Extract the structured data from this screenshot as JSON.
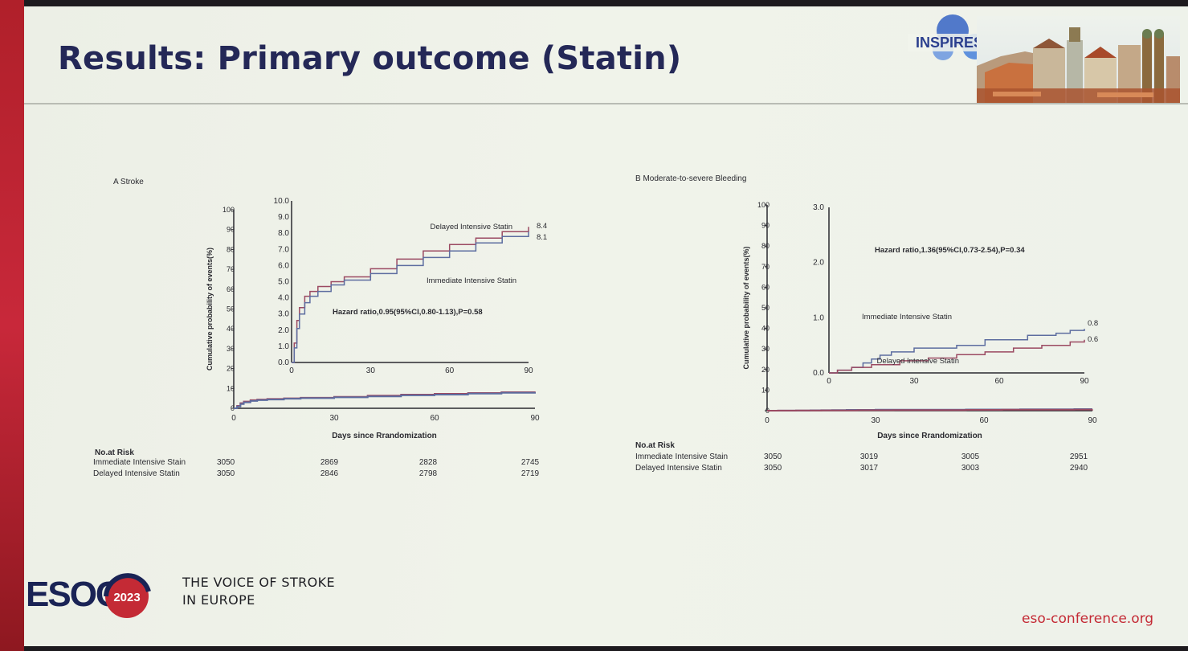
{
  "slide": {
    "title": "Results: Primary outcome (Statin)",
    "inspires_logo_text": "INSPIRES",
    "footer": {
      "esoc_logo_text": "ESOC",
      "year_badge": "2023",
      "tagline_line1": "THE VOICE OF STROKE",
      "tagline_line2": "IN EUROPE",
      "website": "eso-conference.org"
    }
  },
  "colors": {
    "immediate": "#5d6da0",
    "delayed": "#9b4a62",
    "title": "#242857",
    "accent_red": "#c42a35"
  },
  "chart_data": [
    {
      "type": "line",
      "panel_title": "A Stroke",
      "xlabel": "Days since Rrandomization",
      "ylabel": "Cumulative probability of events(%)",
      "xlim": [
        0,
        90
      ],
      "ylim": [
        0,
        100
      ],
      "x_ticks": [
        "0",
        "30",
        "60",
        "90"
      ],
      "y_ticks": [
        "0",
        "10",
        "20",
        "30",
        "40",
        "50",
        "60",
        "70",
        "80",
        "90",
        "100"
      ],
      "inset": {
        "ylim": [
          0,
          10
        ],
        "xlim": [
          0,
          90
        ],
        "x_ticks": [
          "0",
          "30",
          "60",
          "90"
        ],
        "y_ticks": [
          "0.0",
          "1.0",
          "2.0",
          "3.0",
          "4.0",
          "5.0",
          "6.0",
          "7.0",
          "8.0",
          "9.0",
          "10.0"
        ],
        "annotation": "Hazard ratio,0.95(95%CI,0.80-1.13),P=0.58"
      },
      "series": [
        {
          "name": "Delayed Intensive Statin",
          "end_label": "8.4",
          "x": [
            0,
            1,
            2,
            3,
            5,
            7,
            10,
            15,
            20,
            30,
            40,
            50,
            60,
            70,
            80,
            90
          ],
          "y": [
            0,
            1.2,
            2.6,
            3.4,
            4.1,
            4.4,
            4.7,
            5.0,
            5.3,
            5.8,
            6.4,
            6.9,
            7.3,
            7.7,
            8.1,
            8.4
          ]
        },
        {
          "name": "Immediate Intensive Statin",
          "end_label": "8.1",
          "x": [
            0,
            1,
            2,
            3,
            5,
            7,
            10,
            15,
            20,
            30,
            40,
            50,
            60,
            70,
            80,
            90
          ],
          "y": [
            0,
            0.9,
            2.1,
            3.0,
            3.7,
            4.1,
            4.4,
            4.8,
            5.1,
            5.5,
            6.0,
            6.5,
            6.9,
            7.4,
            7.8,
            8.1
          ]
        }
      ],
      "risk_table": {
        "header": "No.at Risk",
        "rows": [
          {
            "label": "Immediate Intensive Stain",
            "values": [
              "3050",
              "2869",
              "2828",
              "2745"
            ]
          },
          {
            "label": "Delayed Intensive Statin",
            "values": [
              "3050",
              "2846",
              "2798",
              "2719"
            ]
          }
        ]
      }
    },
    {
      "type": "line",
      "panel_title": "B Moderate-to-severe Bleeding",
      "xlabel": "Days since Rrandomization",
      "ylabel": "Cumulative probability of events(%)",
      "xlim": [
        0,
        90
      ],
      "ylim": [
        0,
        100
      ],
      "x_ticks": [
        "0",
        "30",
        "60",
        "90"
      ],
      "y_ticks": [
        "0",
        "10",
        "20",
        "30",
        "40",
        "50",
        "60",
        "70",
        "80",
        "90",
        "100"
      ],
      "inset": {
        "ylim": [
          0,
          3
        ],
        "xlim": [
          0,
          90
        ],
        "x_ticks": [
          "0",
          "30",
          "60",
          "90"
        ],
        "y_ticks": [
          "0.0",
          "1.0",
          "2.0",
          "3.0"
        ],
        "annotation": "Hazard ratio,1.36(95%CI,0.73-2.54),P=0.34"
      },
      "series": [
        {
          "name": "Immediate Intensive Statin",
          "end_label": "0.8",
          "x": [
            0,
            3,
            8,
            12,
            15,
            18,
            22,
            30,
            45,
            55,
            70,
            80,
            85,
            90
          ],
          "y": [
            0,
            0.05,
            0.1,
            0.18,
            0.25,
            0.32,
            0.38,
            0.45,
            0.5,
            0.6,
            0.68,
            0.72,
            0.77,
            0.8
          ]
        },
        {
          "name": "Delayed Intensive Statin",
          "end_label": "0.6",
          "x": [
            0,
            3,
            8,
            15,
            25,
            35,
            45,
            55,
            65,
            75,
            85,
            90
          ],
          "y": [
            0,
            0.05,
            0.1,
            0.15,
            0.22,
            0.27,
            0.33,
            0.38,
            0.45,
            0.5,
            0.56,
            0.6
          ]
        }
      ],
      "risk_table": {
        "header": "No.at Risk",
        "rows": [
          {
            "label": "Immediate Intensive Stain",
            "values": [
              "3050",
              "3019",
              "3005",
              "2951"
            ]
          },
          {
            "label": "Delayed Intensive Statin",
            "values": [
              "3050",
              "3017",
              "3003",
              "2940"
            ]
          }
        ]
      }
    }
  ]
}
